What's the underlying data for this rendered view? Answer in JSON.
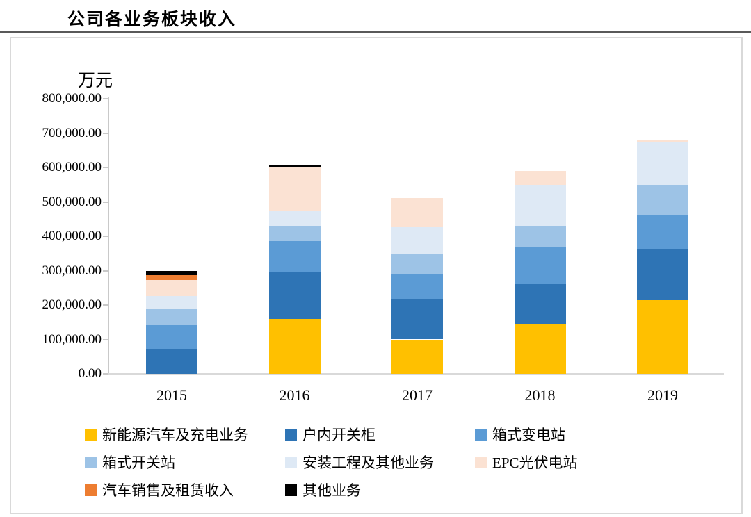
{
  "page": {
    "title": "公司各业务板块收入"
  },
  "chart_data": {
    "type": "bar",
    "stacked": true,
    "title": "公司各业务板块收入",
    "unit_label": "万元",
    "categories": [
      "2015",
      "2016",
      "2017",
      "2018",
      "2019"
    ],
    "series": [
      {
        "name": "新能源汽车及充电业务",
        "color": "#FFC000",
        "values": [
          0,
          160000,
          100000,
          145000,
          215000
        ]
      },
      {
        "name": "户内开关柜",
        "color": "#2E74B5",
        "values": [
          72000,
          135000,
          118000,
          118000,
          146000
        ]
      },
      {
        "name": "箱式变电站",
        "color": "#5B9BD5",
        "values": [
          72000,
          90000,
          70000,
          104000,
          100000
        ]
      },
      {
        "name": "箱式开关站",
        "color": "#9DC3E6",
        "values": [
          45000,
          45000,
          62000,
          64000,
          88000
        ]
      },
      {
        "name": "安装工程及其他业务",
        "color": "#DEE9F5",
        "values": [
          37000,
          45000,
          76000,
          118000,
          125000
        ]
      },
      {
        "name": "EPC光伏电站",
        "color": "#FBE2D3",
        "values": [
          46000,
          125000,
          86000,
          41000,
          4000
        ]
      },
      {
        "name": "汽车销售及租赁收入",
        "color": "#ED7D31",
        "values": [
          14000,
          0,
          0,
          0,
          0
        ]
      },
      {
        "name": "其他业务",
        "color": "#000000",
        "values": [
          12000,
          8000,
          0,
          0,
          0
        ]
      }
    ],
    "totals": [
      298000,
      608000,
      512000,
      590000,
      678000
    ],
    "y_axis": {
      "min": 0,
      "max": 800000,
      "tick_step": 100000,
      "tick_labels": [
        "0.00",
        "100,000.00",
        "200,000.00",
        "300,000.00",
        "400,000.00",
        "500,000.00",
        "600,000.00",
        "700,000.00",
        "800,000.00"
      ]
    },
    "legend_position": "bottom",
    "legend_rows": [
      [
        0,
        1,
        2
      ],
      [
        3,
        4,
        5
      ],
      [
        6,
        7
      ]
    ],
    "grid": false
  }
}
